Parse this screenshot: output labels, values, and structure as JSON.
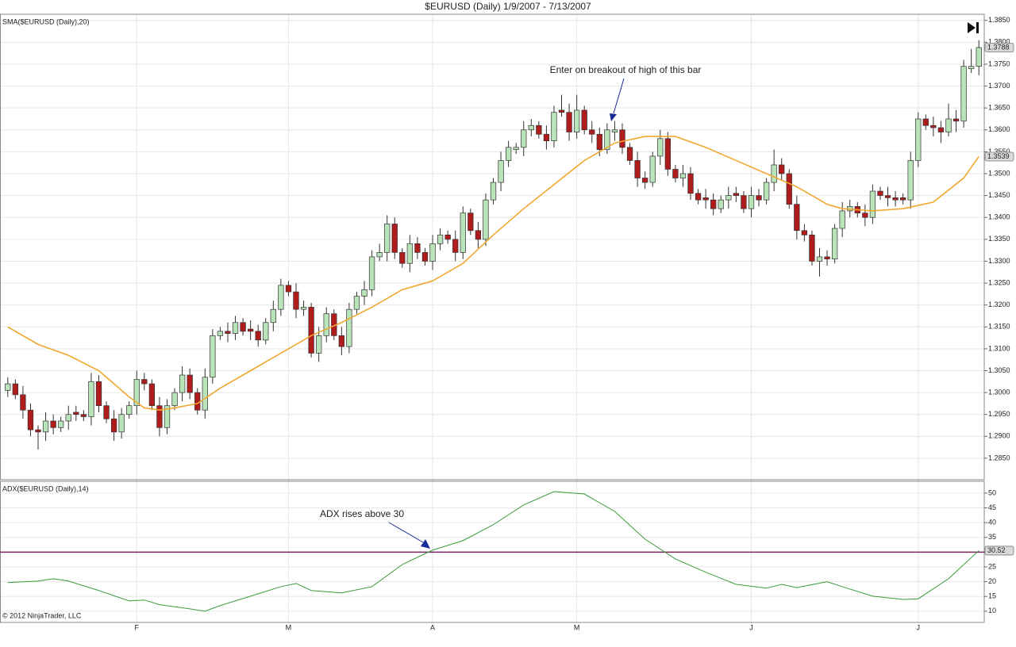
{
  "chart_data": [
    {
      "type": "candlestick",
      "title": "$EURUSD (Daily)  1/9/2007 - 7/13/2007",
      "label": "SMA($EURUSD (Daily),20)",
      "annotation": "Enter on breakout of high of this bar",
      "up_color": "#b9e3b9",
      "down_color": "#b01c1c",
      "outline": "#333333",
      "grid": true,
      "categories": [
        null,
        null,
        null,
        null,
        null,
        null,
        null,
        null,
        null,
        null,
        null,
        null,
        null,
        null,
        null,
        null,
        null,
        "F",
        null,
        null,
        null,
        null,
        null,
        null,
        null,
        null,
        null,
        null,
        null,
        null,
        null,
        null,
        null,
        null,
        null,
        null,
        null,
        "M",
        null,
        null,
        null,
        null,
        null,
        null,
        null,
        null,
        null,
        null,
        null,
        null,
        null,
        null,
        null,
        null,
        null,
        null,
        "A",
        null,
        null,
        null,
        null,
        null,
        null,
        null,
        null,
        null,
        null,
        null,
        null,
        null,
        null,
        null,
        null,
        null,
        null,
        "M",
        null,
        null,
        null,
        null,
        null,
        null,
        null,
        null,
        null,
        null,
        null,
        null,
        null,
        null,
        null,
        null,
        null,
        null,
        null,
        null,
        null,
        null,
        "J",
        null,
        null,
        null,
        null,
        null,
        null,
        null,
        null,
        null,
        null,
        null,
        null,
        null,
        null,
        null,
        null,
        null,
        null,
        null,
        null,
        null,
        "J",
        null,
        null,
        null,
        null,
        null,
        null,
        null,
        null
      ],
      "open": [
        1.3005,
        1.302,
        1.2995,
        1.296,
        1.2915,
        1.291,
        1.2935,
        1.292,
        1.2935,
        1.2955,
        1.295,
        1.2945,
        1.3025,
        1.297,
        1.294,
        1.291,
        1.295,
        1.297,
        1.303,
        1.302,
        1.297,
        1.292,
        1.297,
        1.3,
        1.304,
        1.3,
        1.296,
        1.3035,
        1.313,
        1.314,
        1.3135,
        1.316,
        1.3145,
        1.314,
        1.312,
        1.316,
        1.319,
        1.3245,
        1.323,
        1.319,
        1.3195,
        1.309,
        1.313,
        1.318,
        1.313,
        1.3105,
        1.319,
        1.322,
        1.3235,
        1.331,
        1.332,
        1.3385,
        1.332,
        1.3295,
        1.334,
        1.332,
        1.33,
        1.334,
        1.336,
        1.335,
        1.332,
        1.341,
        1.337,
        1.335,
        1.344,
        1.348,
        1.353,
        1.3555,
        1.356,
        1.36,
        1.361,
        1.359,
        1.3575,
        1.3645,
        1.364,
        1.3595,
        1.3645,
        1.36,
        1.359,
        1.3555,
        1.3595,
        1.36,
        1.356,
        1.353,
        1.349,
        1.348,
        1.354,
        1.358,
        1.351,
        1.349,
        1.35,
        1.3455,
        1.3445,
        1.344,
        1.342,
        1.344,
        1.3455,
        1.345,
        1.342,
        1.345,
        1.344,
        1.348,
        1.352,
        1.35,
        1.343,
        1.337,
        1.336,
        1.33,
        1.331,
        1.3305,
        1.3375,
        1.3415,
        1.3425,
        1.341,
        1.34,
        1.346,
        1.345,
        1.3445,
        1.3445,
        1.344,
        1.353,
        1.3625,
        1.361,
        1.3605,
        1.3595,
        1.3625,
        1.362,
        1.374,
        1.3745
      ],
      "high": [
        1.3035,
        1.303,
        1.3015,
        1.2975,
        1.2925,
        1.2955,
        1.295,
        1.2945,
        1.297,
        1.297,
        1.296,
        1.3045,
        1.304,
        1.298,
        1.296,
        1.2965,
        1.298,
        1.305,
        1.3045,
        1.303,
        1.299,
        1.2985,
        1.301,
        1.306,
        1.3055,
        1.301,
        1.3055,
        1.3145,
        1.315,
        1.316,
        1.3175,
        1.317,
        1.3165,
        1.3155,
        1.317,
        1.321,
        1.326,
        1.3255,
        1.325,
        1.321,
        1.3205,
        1.315,
        1.3195,
        1.319,
        1.315,
        1.3205,
        1.323,
        1.3255,
        1.3325,
        1.334,
        1.3405,
        1.34,
        1.333,
        1.336,
        1.3355,
        1.333,
        1.336,
        1.3375,
        1.337,
        1.337,
        1.3425,
        1.342,
        1.339,
        1.3455,
        1.349,
        1.355,
        1.3575,
        1.357,
        1.362,
        1.3625,
        1.362,
        1.361,
        1.3655,
        1.368,
        1.366,
        1.368,
        1.3655,
        1.362,
        1.3605,
        1.3615,
        1.362,
        1.3615,
        1.357,
        1.355,
        1.3505,
        1.355,
        1.36,
        1.3595,
        1.352,
        1.352,
        1.3515,
        1.3465,
        1.3465,
        1.3455,
        1.345,
        1.347,
        1.347,
        1.346,
        1.347,
        1.3465,
        1.349,
        1.3555,
        1.3535,
        1.351,
        1.345,
        1.3385,
        1.337,
        1.333,
        1.3325,
        1.3385,
        1.3435,
        1.344,
        1.3435,
        1.343,
        1.3475,
        1.347,
        1.347,
        1.346,
        1.3455,
        1.355,
        1.364,
        1.3635,
        1.363,
        1.362,
        1.366,
        1.3645,
        1.376,
        1.3785,
        1.3805
      ],
      "low": [
        1.299,
        1.2985,
        1.294,
        1.29,
        1.287,
        1.289,
        1.2905,
        1.291,
        1.2915,
        1.2935,
        1.2935,
        1.2925,
        1.2955,
        1.293,
        1.289,
        1.2895,
        1.294,
        1.295,
        1.3005,
        1.296,
        1.29,
        1.2905,
        1.296,
        1.298,
        1.2985,
        1.295,
        1.294,
        1.302,
        1.312,
        1.3115,
        1.312,
        1.313,
        1.312,
        1.3105,
        1.311,
        1.314,
        1.3175,
        1.322,
        1.317,
        1.3175,
        1.308,
        1.307,
        1.3115,
        1.312,
        1.3085,
        1.309,
        1.318,
        1.32,
        1.322,
        1.33,
        1.33,
        1.3305,
        1.3285,
        1.3275,
        1.3305,
        1.329,
        1.328,
        1.3325,
        1.334,
        1.33,
        1.3305,
        1.336,
        1.333,
        1.3335,
        1.343,
        1.346,
        1.3515,
        1.3545,
        1.354,
        1.3585,
        1.358,
        1.3555,
        1.356,
        1.363,
        1.3575,
        1.358,
        1.359,
        1.357,
        1.354,
        1.3545,
        1.3575,
        1.3545,
        1.352,
        1.347,
        1.3465,
        1.347,
        1.352,
        1.3495,
        1.348,
        1.347,
        1.344,
        1.343,
        1.342,
        1.3405,
        1.341,
        1.342,
        1.3435,
        1.341,
        1.34,
        1.3425,
        1.343,
        1.346,
        1.3485,
        1.342,
        1.335,
        1.3345,
        1.329,
        1.3265,
        1.329,
        1.3295,
        1.3355,
        1.34,
        1.34,
        1.338,
        1.3385,
        1.344,
        1.3425,
        1.3425,
        1.343,
        1.342,
        1.3515,
        1.36,
        1.3585,
        1.357,
        1.3585,
        1.3595,
        1.3605,
        1.373,
        1.3725
      ],
      "close": [
        1.302,
        1.2995,
        1.296,
        1.2915,
        1.291,
        1.2935,
        1.292,
        1.2935,
        1.295,
        1.295,
        1.2945,
        1.3025,
        1.297,
        1.294,
        1.291,
        1.295,
        1.297,
        1.303,
        1.302,
        1.297,
        1.292,
        1.297,
        1.3,
        1.304,
        1.3,
        1.296,
        1.3035,
        1.313,
        1.314,
        1.3135,
        1.316,
        1.314,
        1.314,
        1.312,
        1.316,
        1.319,
        1.3245,
        1.323,
        1.319,
        1.3195,
        1.309,
        1.313,
        1.318,
        1.313,
        1.3105,
        1.319,
        1.322,
        1.3235,
        1.331,
        1.332,
        1.3385,
        1.332,
        1.3295,
        1.334,
        1.332,
        1.33,
        1.334,
        1.336,
        1.335,
        1.332,
        1.341,
        1.337,
        1.335,
        1.344,
        1.348,
        1.353,
        1.356,
        1.356,
        1.36,
        1.361,
        1.359,
        1.3575,
        1.364,
        1.364,
        1.3595,
        1.3645,
        1.36,
        1.359,
        1.3555,
        1.36,
        1.36,
        1.356,
        1.353,
        1.349,
        1.348,
        1.354,
        1.358,
        1.351,
        1.349,
        1.35,
        1.3455,
        1.344,
        1.344,
        1.342,
        1.344,
        1.345,
        1.345,
        1.342,
        1.345,
        1.344,
        1.348,
        1.352,
        1.35,
        1.343,
        1.337,
        1.336,
        1.33,
        1.331,
        1.3305,
        1.3375,
        1.3415,
        1.3425,
        1.341,
        1.34,
        1.346,
        1.345,
        1.3445,
        1.344,
        1.344,
        1.353,
        1.3625,
        1.361,
        1.3605,
        1.3595,
        1.3625,
        1.362,
        1.3745,
        1.3745,
        1.3788
      ],
      "close_label": "1.3788",
      "sma": {
        "color": "#f0a830",
        "x": [
          0,
          4,
          8,
          12,
          16,
          18,
          20,
          22,
          25,
          28,
          32,
          36,
          40,
          44,
          48,
          52,
          56,
          60,
          64,
          68,
          72,
          76,
          80,
          84,
          88,
          92,
          96,
          100,
          104,
          108,
          110,
          114,
          118,
          122,
          126,
          128
        ],
        "values": [
          1.315,
          1.311,
          1.3085,
          1.305,
          1.299,
          1.2965,
          1.296,
          1.2965,
          1.2975,
          1.301,
          1.305,
          1.309,
          1.313,
          1.316,
          1.3195,
          1.3235,
          1.3255,
          1.3295,
          1.336,
          1.342,
          1.3475,
          1.353,
          1.357,
          1.3585,
          1.3585,
          1.356,
          1.353,
          1.35,
          1.347,
          1.343,
          1.342,
          1.3415,
          1.342,
          1.3435,
          1.349,
          1.3539
        ],
        "value_label": "1.3539"
      },
      "ylim": [
        1.2801,
        1.3864
      ],
      "yticks": [
        {
          "value": 1.285,
          "label": "1.2850"
        },
        {
          "value": 1.29,
          "label": "1.2900"
        },
        {
          "value": 1.295,
          "label": "1.2950"
        },
        {
          "value": 1.3,
          "label": "1.3000"
        },
        {
          "value": 1.305,
          "label": "1.3050"
        },
        {
          "value": 1.31,
          "label": "1.3100"
        },
        {
          "value": 1.315,
          "label": "1.3150"
        },
        {
          "value": 1.32,
          "label": "1.3200"
        },
        {
          "value": 1.325,
          "label": "1.3250"
        },
        {
          "value": 1.33,
          "label": "1.3300"
        },
        {
          "value": 1.335,
          "label": "1.3350"
        },
        {
          "value": 1.34,
          "label": "1.3400"
        },
        {
          "value": 1.345,
          "label": "1.3450"
        },
        {
          "value": 1.35,
          "label": "1.3500"
        },
        {
          "value": 1.355,
          "label": "1.3550"
        },
        {
          "value": 1.36,
          "label": "1.3600"
        },
        {
          "value": 1.365,
          "label": "1.3650"
        },
        {
          "value": 1.37,
          "label": "1.3700"
        },
        {
          "value": 1.375,
          "label": "1.3750"
        },
        {
          "value": 1.38,
          "label": "1.3800"
        },
        {
          "value": 1.385,
          "label": "1.3850"
        }
      ]
    },
    {
      "type": "line",
      "label": "ADX($EURUSD (Daily),14)",
      "annotation": "ADX rises above 30",
      "copyright": "© 2012 NinjaTrader, LLC",
      "grid": true,
      "series": [
        {
          "color": "#3a9a3a",
          "x": [
            0,
            4,
            6,
            8,
            12,
            16,
            18,
            20,
            24,
            26,
            28,
            32,
            36,
            38,
            40,
            44,
            48,
            52,
            56,
            60,
            64,
            68,
            72,
            76,
            80,
            84,
            88,
            92,
            96,
            100,
            102,
            104,
            108,
            110,
            114,
            118,
            120,
            124,
            128
          ],
          "values": [
            19.7,
            20.2,
            21,
            20.2,
            17,
            13.5,
            13.8,
            12.2,
            10.8,
            10,
            11.9,
            15.1,
            18.3,
            19.4,
            17,
            16.2,
            18.3,
            25.8,
            30.7,
            33.9,
            39.3,
            46,
            50.5,
            49.7,
            43.8,
            34.4,
            27.7,
            23.2,
            19.1,
            17.8,
            19.1,
            18,
            20,
            18.3,
            15.1,
            14,
            14.2,
            21,
            30.52
          ],
          "value_label": "30.52"
        }
      ],
      "hline": {
        "value": 30,
        "color": "#7a2860"
      },
      "ylim": [
        6.2,
        54
      ],
      "yticks": [
        10,
        15,
        20,
        25,
        30,
        35,
        40,
        45,
        50
      ]
    }
  ]
}
